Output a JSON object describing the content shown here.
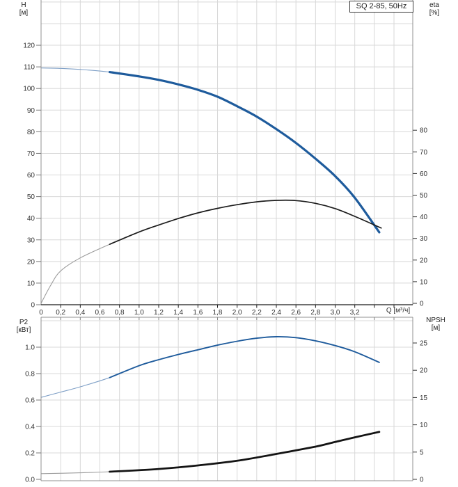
{
  "title_box": "SQ 2-85, 50Hz",
  "chart_data": [
    {
      "type": "line",
      "title": "SQ 2-85, 50Hz",
      "grid": true,
      "legend": "none",
      "x_axis": {
        "unit_label": "Q [м³/ч]",
        "range": [
          0,
          3.8
        ],
        "grid_step": 0.2,
        "grid_max": 3.6,
        "tick_values": [
          0,
          0.2,
          0.4,
          0.6,
          0.8,
          1.0,
          1.2,
          1.4,
          1.6,
          1.8,
          2.0,
          2.2,
          2.4,
          2.6,
          2.8,
          3.0,
          3.2
        ],
        "tick_labels": [
          "0",
          "0,2",
          "0,4",
          "0,6",
          "0,8",
          "1,0",
          "1,2",
          "1,4",
          "1,6",
          "1,8",
          "2,0",
          "2,2",
          "2,4",
          "2,6",
          "2,8",
          "3,0",
          "3,2"
        ]
      },
      "left_axis": {
        "name": "H",
        "unit": "[м]",
        "range": [
          0,
          141
        ],
        "tick_values": [
          0,
          10,
          20,
          30,
          40,
          50,
          60,
          70,
          80,
          90,
          100,
          110,
          120
        ],
        "grid_values": [
          10,
          20,
          30,
          40,
          50,
          60,
          70,
          80,
          90,
          100,
          110,
          120,
          130,
          140
        ]
      },
      "right_axis": {
        "name": "eta",
        "unit": "[%]",
        "range": [
          0,
          90
        ],
        "tick_values": [
          0,
          10,
          20,
          30,
          40,
          50,
          60,
          70,
          80
        ]
      },
      "series": [
        {
          "name": "H",
          "axis": "left",
          "color": "#1e5b9c",
          "thin_color": "#7e9fc6",
          "width": 3.2,
          "thin_until": 0.7,
          "points": [
            [
              0,
              109.5
            ],
            [
              0.2,
              109.3
            ],
            [
              0.4,
              108.8
            ],
            [
              0.7,
              107.6
            ],
            [
              1.0,
              105.6
            ],
            [
              1.2,
              104.0
            ],
            [
              1.4,
              101.9
            ],
            [
              1.6,
              99.4
            ],
            [
              1.8,
              96.2
            ],
            [
              2.0,
              91.8
            ],
            [
              2.2,
              87.0
            ],
            [
              2.4,
              81.2
            ],
            [
              2.6,
              74.8
            ],
            [
              2.8,
              67.5
            ],
            [
              3.0,
              59.5
            ],
            [
              3.2,
              49.5
            ],
            [
              3.45,
              33.5
            ]
          ]
        },
        {
          "name": "eta",
          "axis": "right",
          "color": "#1c1c1c",
          "thin_color": "#9b9b9b",
          "width": 1.7,
          "thin_until": 0.7,
          "points": [
            [
              0,
              0
            ],
            [
              0.1,
              8.5
            ],
            [
              0.2,
              15.0
            ],
            [
              0.4,
              21.0
            ],
            [
              0.7,
              27.3
            ],
            [
              1.0,
              33.0
            ],
            [
              1.2,
              36.2
            ],
            [
              1.4,
              39.2
            ],
            [
              1.6,
              41.8
            ],
            [
              1.8,
              43.9
            ],
            [
              2.0,
              45.6
            ],
            [
              2.2,
              46.9
            ],
            [
              2.4,
              47.6
            ],
            [
              2.6,
              47.5
            ],
            [
              2.8,
              46.2
            ],
            [
              3.0,
              43.8
            ],
            [
              3.2,
              40.2
            ],
            [
              3.47,
              34.8
            ]
          ]
        }
      ]
    },
    {
      "type": "line",
      "title": "",
      "grid": true,
      "legend": "none",
      "x_axis": {
        "unit_label": "",
        "range": [
          0,
          3.8
        ],
        "grid_step": 0.2,
        "grid_max": 3.6,
        "tick_values": [],
        "tick_labels": []
      },
      "left_axis": {
        "name": "P2",
        "unit": "[кВт]",
        "range": [
          0,
          1.22
        ],
        "tick_values": [
          0,
          0.2,
          0.4,
          0.6,
          0.8,
          1.0
        ],
        "tick_labels": [
          "0.0",
          "0.2",
          "0.4",
          "0.6",
          "0.8",
          "1.0"
        ],
        "grid_values": [
          0.2,
          0.4,
          0.6,
          0.8,
          1.0,
          1.2
        ]
      },
      "right_axis": {
        "name": "NPSH",
        "unit": "[м]",
        "range": [
          0,
          29.7
        ],
        "tick_values": [
          0,
          5,
          10,
          15,
          20,
          25
        ]
      },
      "series": [
        {
          "name": "P2",
          "axis": "left",
          "color": "#1e5b9c",
          "thin_color": "#7e9fc6",
          "width": 1.9,
          "thin_until": 0.7,
          "points": [
            [
              0,
              0.62
            ],
            [
              0.2,
              0.66
            ],
            [
              0.4,
              0.7
            ],
            [
              0.7,
              0.77
            ],
            [
              1.0,
              0.86
            ],
            [
              1.2,
              0.905
            ],
            [
              1.4,
              0.945
            ],
            [
              1.6,
              0.98
            ],
            [
              1.8,
              1.015
            ],
            [
              2.0,
              1.045
            ],
            [
              2.2,
              1.068
            ],
            [
              2.4,
              1.079
            ],
            [
              2.6,
              1.072
            ],
            [
              2.8,
              1.048
            ],
            [
              3.0,
              1.012
            ],
            [
              3.2,
              0.965
            ],
            [
              3.45,
              0.885
            ]
          ]
        },
        {
          "name": "NPSH",
          "axis": "right",
          "color": "#141414",
          "thin_color": "#9b9b9b",
          "width": 2.8,
          "thin_until": 0.7,
          "points": [
            [
              0,
              1.05
            ],
            [
              0.4,
              1.2
            ],
            [
              0.7,
              1.4
            ],
            [
              1.2,
              1.9
            ],
            [
              1.6,
              2.55
            ],
            [
              2.0,
              3.4
            ],
            [
              2.4,
              4.65
            ],
            [
              2.8,
              6.0
            ],
            [
              3.0,
              6.85
            ],
            [
              3.2,
              7.7
            ],
            [
              3.45,
              8.7
            ]
          ]
        }
      ]
    }
  ]
}
